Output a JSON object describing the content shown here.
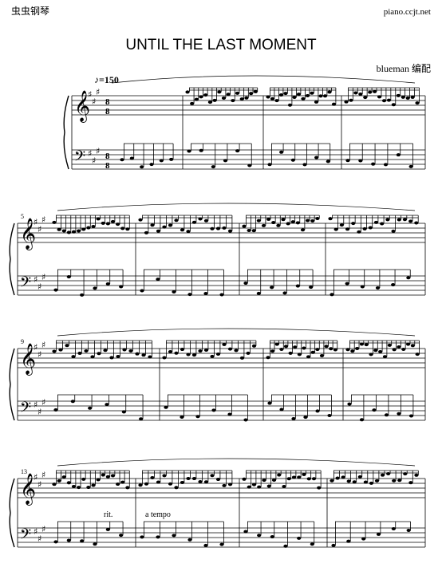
{
  "header": {
    "site_left": "虫虫钢琴",
    "site_right": "piano.ccjt.net"
  },
  "title": "UNTIL THE LAST MOMENT",
  "arranger": "blueman 编配",
  "tempo": "♪=150",
  "time_signature": {
    "top": "8",
    "bottom": "8"
  },
  "systems": [
    {
      "measure_number": null
    },
    {
      "measure_number": "5"
    },
    {
      "measure_number": "9"
    },
    {
      "measure_number": "13"
    }
  ],
  "annotations": {
    "rit": "rit.",
    "a_tempo": "a tempo"
  }
}
